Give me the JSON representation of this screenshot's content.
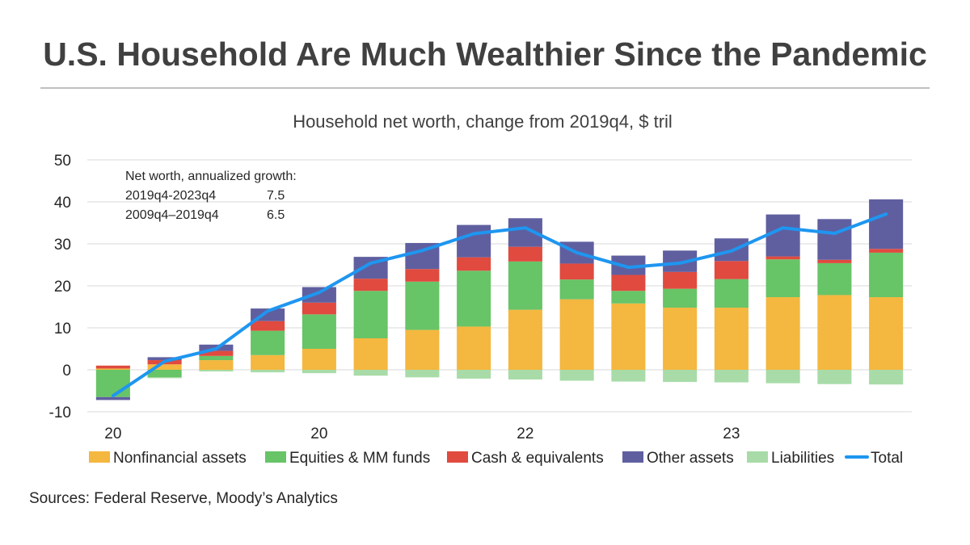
{
  "header": {
    "title": "U.S. Household Are Much Wealthier Since the Pandemic"
  },
  "footer": {
    "sources": "Sources: Federal Reserve, Moody’s Analytics"
  },
  "chart_data": {
    "type": "bar",
    "title": "Household net worth, change from 2019q4, $ tril",
    "xlabel": "",
    "ylabel": "",
    "ylim": [
      -10,
      50
    ],
    "yticks": [
      -10,
      0,
      10,
      20,
      30,
      40,
      50
    ],
    "grid": true,
    "legend_position": "bottom",
    "categories": [
      "2020q1",
      "2020q2",
      "2020q3",
      "2020q4",
      "2021q1",
      "2021q2",
      "2021q3",
      "2021q4",
      "2022q1",
      "2022q2",
      "2022q3",
      "2022q4",
      "2023q1",
      "2023q2",
      "2023q3",
      "2023q4"
    ],
    "x_tick_labels": [
      {
        "index": 0,
        "label": "20"
      },
      {
        "index": 4,
        "label": "20"
      },
      {
        "index": 8,
        "label": "22"
      },
      {
        "index": 12,
        "label": "23"
      }
    ],
    "series": [
      {
        "name": "Nonfinancial assets",
        "type": "bar",
        "color": "#F4B73F",
        "values": [
          0.3,
          1.3,
          2.3,
          3.5,
          5.0,
          7.5,
          9.5,
          10.3,
          14.3,
          16.8,
          15.8,
          14.8,
          14.8,
          17.3,
          17.8,
          17.3
        ]
      },
      {
        "name": "Equities & MM funds",
        "type": "bar",
        "color": "#67C467",
        "values": [
          -6.5,
          -1.8,
          1.0,
          5.8,
          8.2,
          11.3,
          11.5,
          13.3,
          11.5,
          4.7,
          3.0,
          4.5,
          6.8,
          9.0,
          7.6,
          10.6
        ]
      },
      {
        "name": "Cash & equivalents",
        "type": "bar",
        "color": "#E04A3F",
        "values": [
          0.7,
          1.0,
          1.2,
          2.3,
          2.8,
          2.9,
          3.0,
          3.2,
          3.5,
          3.8,
          3.8,
          4.0,
          4.3,
          0.7,
          0.8,
          0.9
        ]
      },
      {
        "name": "Other assets",
        "type": "bar",
        "color": "#5F5FA0",
        "values": [
          -0.7,
          0.7,
          1.5,
          3.0,
          3.7,
          5.2,
          6.2,
          7.7,
          6.8,
          5.2,
          4.6,
          5.1,
          5.4,
          10.0,
          9.7,
          11.8
        ]
      },
      {
        "name": "Liabilities",
        "type": "bar",
        "color": "#A8DBA8",
        "values": [
          0.0,
          -0.2,
          -0.4,
          -0.6,
          -0.8,
          -1.4,
          -1.8,
          -2.1,
          -2.3,
          -2.6,
          -2.8,
          -2.9,
          -3.0,
          -3.2,
          -3.4,
          -3.5
        ]
      },
      {
        "name": "Total",
        "type": "line",
        "color": "#1E96F0",
        "values": [
          -6.2,
          2.0,
          5.0,
          14.0,
          18.4,
          25.4,
          28.4,
          32.4,
          33.8,
          27.9,
          24.4,
          25.4,
          28.3,
          33.8,
          32.5,
          37.1
        ]
      }
    ],
    "annotations": {
      "heading": "Net worth, annualized  growth:",
      "rows": [
        {
          "period": "2019q4-2023q4",
          "value": "7.5"
        },
        {
          "period": "2009q4–2019q4",
          "value": "6.5"
        }
      ]
    }
  }
}
